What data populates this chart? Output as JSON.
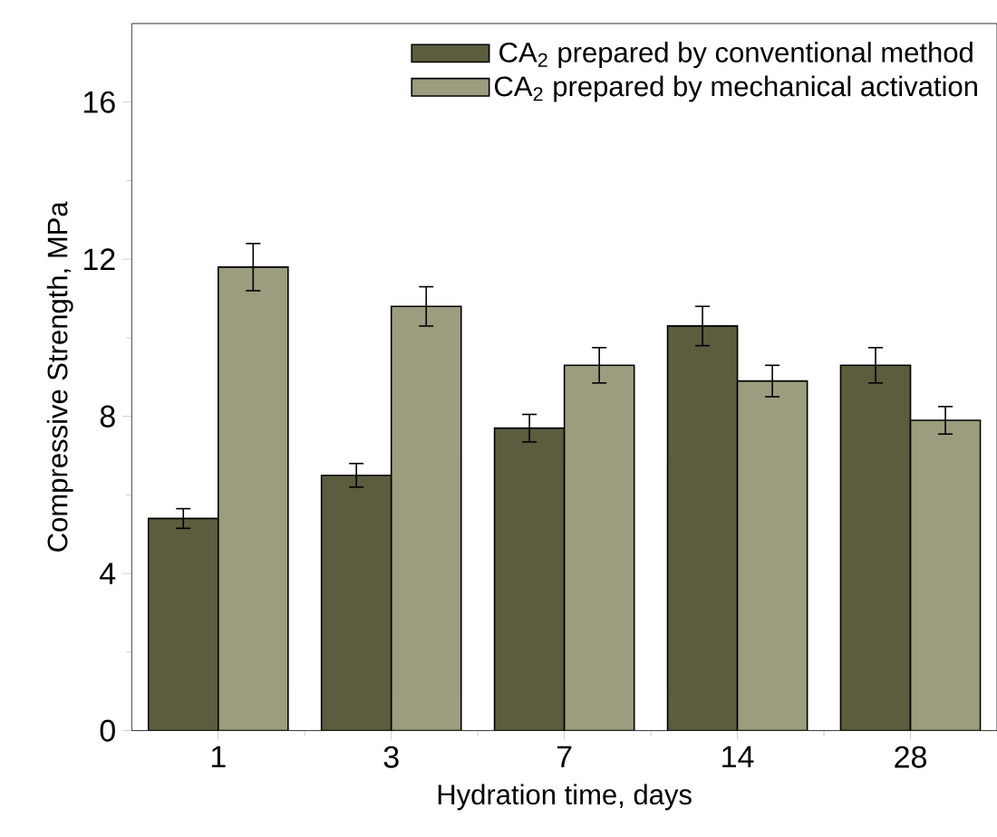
{
  "chart_data": {
    "type": "bar",
    "xlabel": "Hydration time, days",
    "ylabel": "Compressive Strength, MPa",
    "categories": [
      "1",
      "3",
      "7",
      "14",
      "28"
    ],
    "series": [
      {
        "name": "CA$_{2}$ prepared by conventional method",
        "color": "#5c5c3e",
        "values": [
          5.4,
          6.5,
          7.7,
          10.3,
          9.3
        ],
        "errors": [
          0.25,
          0.3,
          0.35,
          0.5,
          0.45
        ]
      },
      {
        "name": "CA$_{2}$ prepared by mechanical activation",
        "color": "#9c9c7e",
        "values": [
          11.8,
          10.8,
          9.3,
          8.9,
          7.9
        ],
        "errors": [
          0.6,
          0.5,
          0.45,
          0.4,
          0.35
        ]
      }
    ],
    "ylim": [
      0,
      18
    ],
    "yticks": [
      0,
      4,
      8,
      12,
      16
    ],
    "legend": "top right",
    "grid": false
  }
}
